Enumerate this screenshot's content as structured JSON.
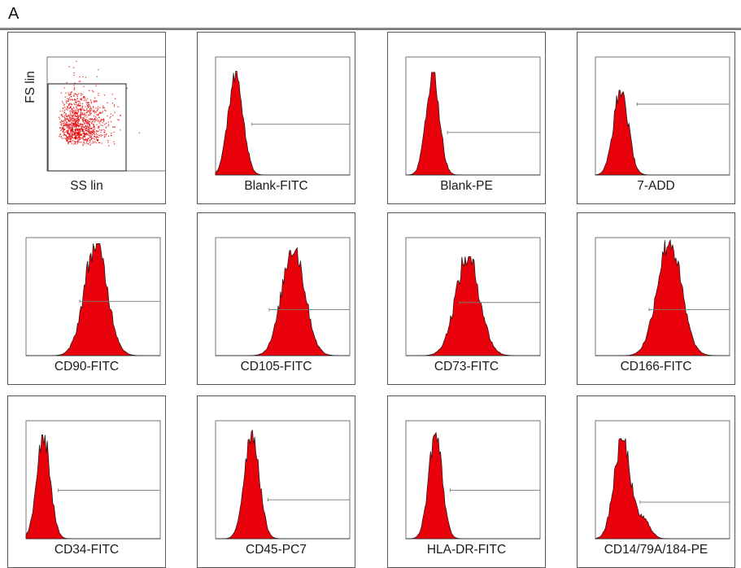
{
  "panel_label": "A",
  "scatter_panel": {
    "x_label": "SS lin",
    "y_label": "FS lin"
  },
  "header_text": "",
  "histograms": [
    {
      "label": "Blank-FITC",
      "peak": 0.15,
      "width": 0.055,
      "height": 0.88,
      "gate_level": 0.43,
      "tail": 0
    },
    {
      "label": "Blank-PE",
      "peak": 0.2,
      "width": 0.05,
      "height": 0.87,
      "gate_level": 0.36,
      "tail": 0
    },
    {
      "label": "7-ADD",
      "peak": 0.19,
      "width": 0.055,
      "height": 0.72,
      "gate_level": 0.6,
      "tail": 0
    },
    {
      "label": "CD90-FITC",
      "peak": 0.52,
      "width": 0.085,
      "height": 0.95,
      "gate_level": 0.46,
      "tail": 0
    },
    {
      "label": "CD105-FITC",
      "peak": 0.58,
      "width": 0.085,
      "height": 0.93,
      "gate_level": 0.39,
      "tail": 0
    },
    {
      "label": "CD73-FITC",
      "peak": 0.46,
      "width": 0.09,
      "height": 0.84,
      "gate_level": 0.45,
      "tail": 0
    },
    {
      "label": "CD166-FITC",
      "peak": 0.55,
      "width": 0.09,
      "height": 0.98,
      "gate_level": 0.39,
      "tail": 0
    },
    {
      "label": "CD34-FITC",
      "peak": 0.13,
      "width": 0.05,
      "height": 0.88,
      "gate_level": 0.41,
      "tail": 0
    },
    {
      "label": "CD45-PC7",
      "peak": 0.27,
      "width": 0.055,
      "height": 0.92,
      "gate_level": 0.33,
      "tail": 0
    },
    {
      "label": "HLA-DR-FITC",
      "peak": 0.22,
      "width": 0.05,
      "height": 0.9,
      "gate_level": 0.41,
      "tail": 0
    },
    {
      "label": "CD14/79A/184-PE",
      "peak": 0.2,
      "width": 0.06,
      "height": 0.85,
      "gate_level": 0.31,
      "tail": 1
    }
  ],
  "colors": {
    "fill": "#e8000a",
    "outline": "#1a1a1a",
    "gate_line": "#7a7a7a",
    "plot_frame": "#555555",
    "dot": "#e60000"
  }
}
